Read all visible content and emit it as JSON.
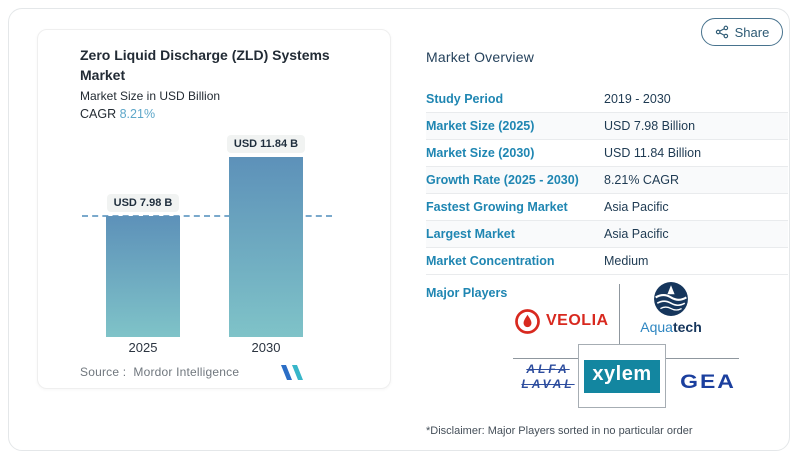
{
  "share": {
    "label": "Share"
  },
  "left_panel": {
    "title_line1": "Zero Liquid Discharge (ZLD) Systems",
    "title_line2": "Market",
    "subtitle": "Market Size in USD Billion",
    "cagr_label": "CAGR",
    "cagr_value": "8.21%",
    "source_label": "Source :",
    "source_value": "Mordor Intelligence"
  },
  "chart_data": {
    "type": "bar",
    "title": "Zero Liquid Discharge (ZLD) Systems Market",
    "ylabel": "Market Size in USD Billion",
    "categories": [
      "2025",
      "2030"
    ],
    "values": [
      7.98,
      11.84
    ],
    "value_labels": [
      "USD 7.98 B",
      "USD 11.84 B"
    ],
    "cagr": "8.21%",
    "baseline_dashed_at": 7.98,
    "legend": "none",
    "grid": "off",
    "bar_gradient_top": "#5d91b9",
    "bar_gradient_bottom": "#7fc3c8",
    "dashed_line_color": "#7aa9cc"
  },
  "overview": {
    "heading": "Market Overview",
    "rows": [
      {
        "label": "Study Period",
        "value": "2019 - 2030"
      },
      {
        "label": "Market Size (2025)",
        "value": "USD 7.98 Billion"
      },
      {
        "label": "Market Size (2030)",
        "value": "USD 11.84 Billion"
      },
      {
        "label": "Growth Rate (2025 - 2030)",
        "value": "8.21% CAGR"
      },
      {
        "label": "Fastest Growing Market",
        "value": "Asia Pacific"
      },
      {
        "label": "Largest Market",
        "value": "Asia Pacific"
      },
      {
        "label": "Market Concentration",
        "value": "Medium"
      }
    ],
    "major_players_label": "Major Players",
    "players": {
      "veolia": "VEOLIA",
      "aquatech_light": "Aqua",
      "aquatech_bold": "tech",
      "alfa_line1": "ALFA",
      "alfa_line2": "LAVAL",
      "xylem": "xylem",
      "gea": "GEA"
    },
    "disclaimer": "*Disclaimer: Major Players sorted in no particular order"
  },
  "icons": {
    "share": "share-nodes-icon",
    "veolia": "veolia-ring-icon",
    "aquatech": "aquatech-globe-icon",
    "mordor": "mordor-intelligence-logo"
  },
  "colors": {
    "table_label_blue": "#1f86b2",
    "table_value_navy": "#1e3a52",
    "cagr_accent": "#5ea7c9",
    "share_button": "#2d5a74",
    "veolia_red": "#d8291f",
    "aquatech_navy": "#16365c",
    "aquatech_blue": "#2e86c1",
    "alfa_laval_blue": "#2d4d9e",
    "xylem_teal": "#1386a0",
    "gea_blue": "#1b3f9e",
    "mordor_blue": "#2b6ec6",
    "mordor_teal": "#38b6c9"
  }
}
